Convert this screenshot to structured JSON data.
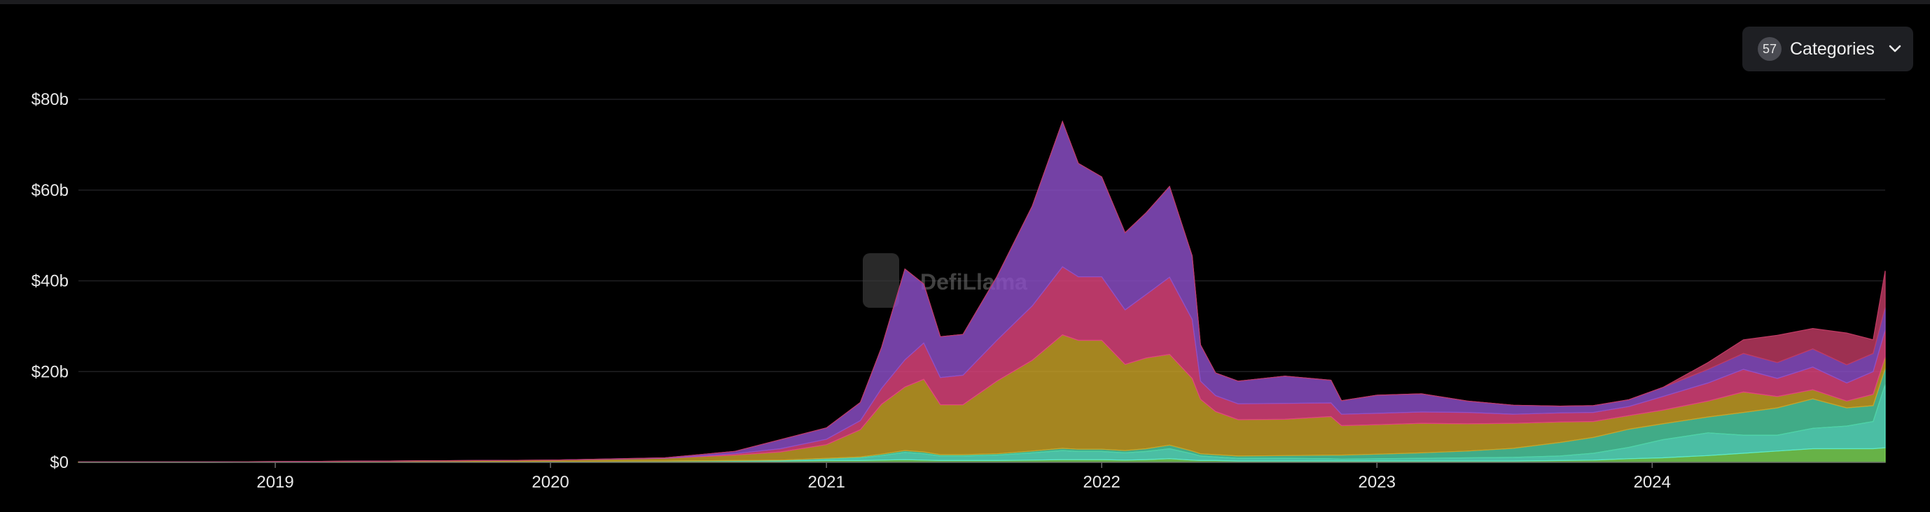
{
  "categories_button": {
    "count": "57",
    "label": "Categories",
    "icon": "chevron-down-icon"
  },
  "watermark": {
    "text": "DefiLlama"
  },
  "colors": {
    "background": "#000000",
    "grid": "#1f1f22",
    "series": [
      "#7ed957",
      "#5ce8c8",
      "#4fd1a5",
      "#c9a227",
      "#e0447e",
      "#8e4fc9",
      "#c03a63"
    ]
  },
  "chart_data": {
    "type": "area",
    "stacked": true,
    "title": "",
    "xlabel": "",
    "ylabel": "",
    "x_ticks": [
      "2019",
      "2020",
      "2021",
      "2022",
      "2023",
      "2024"
    ],
    "y_ticks": [
      "$0",
      "$20b",
      "$40b",
      "$60b",
      "$80b"
    ],
    "xlim": [
      "2018-04-15",
      "2024-11-05"
    ],
    "ylim": [
      0,
      80
    ],
    "y_unit": "$b",
    "grid": true,
    "legend": "none",
    "x": [
      "2018-04-15",
      "2018-10-01",
      "2019-06-01",
      "2020-01-01",
      "2020-06-01",
      "2020-09-01",
      "2020-11-01",
      "2021-01-01",
      "2021-02-15",
      "2021-03-15",
      "2021-04-15",
      "2021-05-10",
      "2021-06-01",
      "2021-07-01",
      "2021-08-15",
      "2021-10-01",
      "2021-11-10",
      "2021-12-01",
      "2022-01-01",
      "2022-02-01",
      "2022-03-01",
      "2022-04-01",
      "2022-05-01",
      "2022-05-12",
      "2022-06-01",
      "2022-07-01",
      "2022-09-01",
      "2022-11-01",
      "2022-11-15",
      "2023-01-01",
      "2023-03-01",
      "2023-05-01",
      "2023-07-01",
      "2023-09-01",
      "2023-10-15",
      "2023-12-01",
      "2024-01-15",
      "2024-03-15",
      "2024-05-01",
      "2024-06-15",
      "2024-08-01",
      "2024-09-15",
      "2024-10-20",
      "2024-11-05"
    ],
    "series": [
      {
        "color": "#7ed957",
        "values": [
          0,
          0,
          0.1,
          0.2,
          0.3,
          0.3,
          0.3,
          0.4,
          0.4,
          0.5,
          0.6,
          0.5,
          0.4,
          0.4,
          0.4,
          0.5,
          0.6,
          0.6,
          0.6,
          0.5,
          0.6,
          0.8,
          0.5,
          0.4,
          0.4,
          0.3,
          0.3,
          0.3,
          0.3,
          0.3,
          0.3,
          0.3,
          0.3,
          0.4,
          0.5,
          0.8,
          1.0,
          1.5,
          2.0,
          2.5,
          3.0,
          3.0,
          3.0,
          3.2
        ]
      },
      {
        "color": "#5ce8c8",
        "values": [
          0,
          0,
          0,
          0,
          0,
          0.1,
          0.2,
          0.4,
          0.6,
          1.0,
          1.6,
          1.4,
          1.0,
          1.0,
          1.2,
          1.6,
          2.0,
          1.8,
          1.8,
          1.6,
          1.8,
          2.2,
          1.4,
          1.0,
          0.8,
          0.6,
          0.6,
          0.5,
          0.4,
          0.5,
          0.6,
          0.7,
          0.8,
          1.0,
          1.5,
          2.5,
          4.0,
          5.0,
          4.0,
          3.5,
          4.5,
          5.0,
          6.0,
          14.0
        ]
      },
      {
        "color": "#4fd1a5",
        "values": [
          0,
          0,
          0,
          0,
          0,
          0,
          0,
          0.1,
          0.2,
          0.3,
          0.4,
          0.4,
          0.3,
          0.3,
          0.3,
          0.4,
          0.5,
          0.5,
          0.5,
          0.5,
          0.6,
          0.8,
          0.6,
          0.5,
          0.5,
          0.5,
          0.6,
          0.8,
          0.9,
          1.0,
          1.2,
          1.5,
          2.0,
          3.0,
          3.5,
          4.0,
          3.5,
          3.5,
          5.0,
          6.0,
          6.5,
          4.0,
          3.5,
          3.5
        ]
      },
      {
        "color": "#c9a227",
        "values": [
          0.1,
          0.1,
          0.2,
          0.3,
          0.6,
          1.2,
          1.8,
          3.0,
          6.0,
          11.0,
          14.0,
          16.0,
          11.0,
          11.0,
          16.0,
          20.0,
          25.0,
          24.0,
          24.0,
          19.0,
          20.0,
          20.0,
          16.0,
          12.0,
          9.5,
          8.0,
          8.0,
          8.5,
          6.5,
          6.5,
          6.5,
          6.0,
          5.5,
          4.5,
          3.5,
          3.0,
          3.0,
          3.5,
          4.5,
          2.5,
          2.0,
          1.5,
          2.5,
          2.5
        ]
      },
      {
        "color": "#e0447e",
        "values": [
          0,
          0,
          0,
          0,
          0,
          0.3,
          0.7,
          1.2,
          2.0,
          3.5,
          6.0,
          8.0,
          6.0,
          6.5,
          9.0,
          12.0,
          15.0,
          14.0,
          14.0,
          12.0,
          14.0,
          17.0,
          13.0,
          4.0,
          3.5,
          3.5,
          3.5,
          3.0,
          2.5,
          2.5,
          2.5,
          2.5,
          2.0,
          2.0,
          2.0,
          2.0,
          3.0,
          4.0,
          5.0,
          4.0,
          5.0,
          4.0,
          5.0,
          6.0
        ]
      },
      {
        "color": "#8e4fc9",
        "values": [
          0,
          0,
          0,
          0,
          0.1,
          0.5,
          2.0,
          2.5,
          4.0,
          9.0,
          20.0,
          13.0,
          9.0,
          9.0,
          14.0,
          22.0,
          32.0,
          25.0,
          22.0,
          17.0,
          18.0,
          20.0,
          14.0,
          8.0,
          5.0,
          5.0,
          6.0,
          5.0,
          3.0,
          4.0,
          4.0,
          2.5,
          2.0,
          1.5,
          1.5,
          1.5,
          2.0,
          3.0,
          3.5,
          3.5,
          4.0,
          4.0,
          4.0,
          5.0
        ]
      },
      {
        "color": "#c03a63",
        "values": [
          0,
          0,
          0,
          0,
          0,
          0,
          0,
          0,
          0,
          0,
          0,
          0,
          0,
          0,
          0,
          0,
          0,
          0,
          0,
          0,
          0,
          0,
          0,
          0,
          0,
          0,
          0,
          0,
          0,
          0,
          0,
          0,
          0,
          0,
          0,
          0,
          0,
          1.5,
          3.0,
          6.0,
          4.5,
          7.0,
          3.0,
          8.0
        ]
      }
    ]
  }
}
